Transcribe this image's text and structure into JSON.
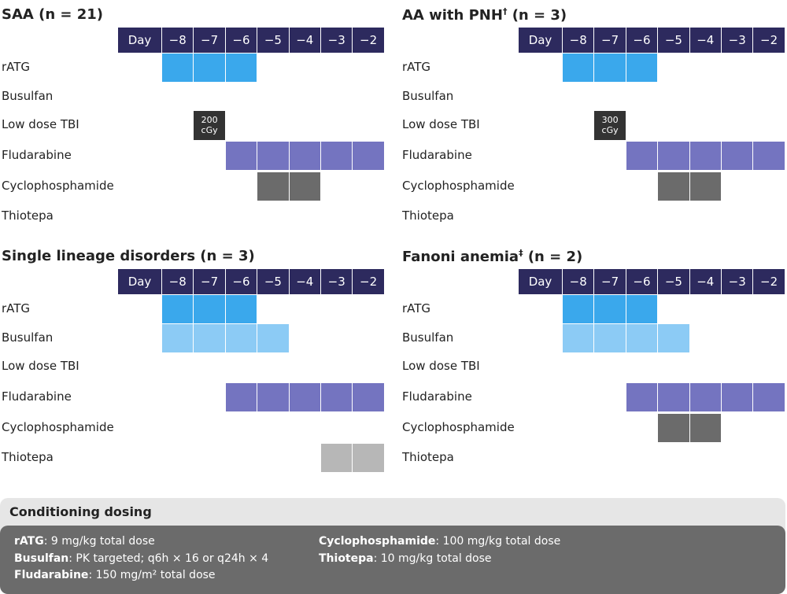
{
  "panels": [
    {
      "title": "SAA (n = 21)",
      "header": "Day",
      "days": [
        {
          "value": -8,
          "label": "−8"
        },
        {
          "value": -7,
          "label": "−7"
        },
        {
          "value": -6,
          "label": "−6"
        },
        {
          "value": -5,
          "label": "−5"
        },
        {
          "value": -4,
          "label": "−4"
        },
        {
          "value": -3,
          "label": "−3"
        },
        {
          "value": -2,
          "label": "−2"
        }
      ],
      "rows": [
        {
          "label": "rATG",
          "color": "#3aa8ec",
          "days": [
            -8,
            -7,
            -6
          ]
        },
        {
          "label": "Busulfan",
          "color": "#8ccbf5",
          "days": []
        },
        {
          "label": "Low dose TBI",
          "color": "#333333",
          "days": [
            -7
          ],
          "dose": "200 cGy"
        },
        {
          "label": "Fludarabine",
          "color": "#7474c0",
          "days": [
            -6,
            -5,
            -4,
            -3,
            -2
          ]
        },
        {
          "label": "Cyclophosphamide",
          "color": "#6b6b6b",
          "days": [
            -5,
            -4
          ]
        },
        {
          "label": "Thiotepa",
          "color": "#b7b7b7",
          "days": []
        }
      ]
    },
    {
      "title": "AA with PNH",
      "title_mark": "†",
      "title_suffix": " (n = 3)",
      "header": "Day",
      "days": [
        {
          "value": -8,
          "label": "−8"
        },
        {
          "value": -7,
          "label": "−7"
        },
        {
          "value": -6,
          "label": "−6"
        },
        {
          "value": -5,
          "label": "−5"
        },
        {
          "value": -4,
          "label": "−4"
        },
        {
          "value": -3,
          "label": "−3"
        },
        {
          "value": -2,
          "label": "−2"
        }
      ],
      "rows": [
        {
          "label": "rATG",
          "color": "#3aa8ec",
          "days": [
            -8,
            -7,
            -6
          ]
        },
        {
          "label": "Busulfan",
          "color": "#8ccbf5",
          "days": []
        },
        {
          "label": "Low dose TBI",
          "color": "#333333",
          "days": [
            -7
          ],
          "dose": "300 cGy"
        },
        {
          "label": "Fludarabine",
          "color": "#7474c0",
          "days": [
            -6,
            -5,
            -4,
            -3,
            -2
          ]
        },
        {
          "label": "Cyclophosphamide",
          "color": "#6b6b6b",
          "days": [
            -5,
            -4
          ]
        },
        {
          "label": "Thiotepa",
          "color": "#b7b7b7",
          "days": []
        }
      ]
    },
    {
      "title": "Single lineage disorders (n = 3)",
      "header": "Day",
      "days": [
        {
          "value": -8,
          "label": "−8"
        },
        {
          "value": -7,
          "label": "−7"
        },
        {
          "value": -6,
          "label": "−6"
        },
        {
          "value": -5,
          "label": "−5"
        },
        {
          "value": -4,
          "label": "−4"
        },
        {
          "value": -3,
          "label": "−3"
        },
        {
          "value": -2,
          "label": "−2"
        }
      ],
      "rows": [
        {
          "label": "rATG",
          "color": "#3aa8ec",
          "days": [
            -8,
            -7,
            -6
          ]
        },
        {
          "label": "Busulfan",
          "color": "#8ccbf5",
          "days": [
            -8,
            -7,
            -6,
            -5
          ]
        },
        {
          "label": "Low dose TBI",
          "color": "#333333",
          "days": []
        },
        {
          "label": "Fludarabine",
          "color": "#7474c0",
          "days": [
            -6,
            -5,
            -4,
            -3,
            -2
          ]
        },
        {
          "label": "Cyclophosphamide",
          "color": "#6b6b6b",
          "days": []
        },
        {
          "label": "Thiotepa",
          "color": "#b7b7b7",
          "days": [
            -3,
            -2
          ]
        }
      ]
    },
    {
      "title": "Fanoni anemia",
      "title_mark": "‡",
      "title_suffix": " (n = 2)",
      "header": "Day",
      "days": [
        {
          "value": -8,
          "label": "−8"
        },
        {
          "value": -7,
          "label": "−7"
        },
        {
          "value": -6,
          "label": "−6"
        },
        {
          "value": -5,
          "label": "−5"
        },
        {
          "value": -4,
          "label": "−4"
        },
        {
          "value": -3,
          "label": "−3"
        },
        {
          "value": -2,
          "label": "−2"
        }
      ],
      "rows": [
        {
          "label": "rATG",
          "color": "#3aa8ec",
          "days": [
            -8,
            -7,
            -6
          ]
        },
        {
          "label": "Busulfan",
          "color": "#8ccbf5",
          "days": [
            -8,
            -7,
            -6,
            -5
          ]
        },
        {
          "label": "Low dose TBI",
          "color": "#333333",
          "days": []
        },
        {
          "label": "Fludarabine",
          "color": "#7474c0",
          "days": [
            -6,
            -5,
            -4,
            -3,
            -2
          ]
        },
        {
          "label": "Cyclophosphamide",
          "color": "#6b6b6b",
          "days": [
            -5,
            -4
          ]
        },
        {
          "label": "Thiotepa",
          "color": "#b7b7b7",
          "days": []
        }
      ]
    }
  ],
  "dosing": {
    "title": "Conditioning dosing",
    "items": [
      {
        "drug": "rATG",
        "text": ": 9 mg/kg total dose"
      },
      {
        "drug": "Busulfan",
        "text": ": PK targeted; q6h × 16 or q24h × 4"
      },
      {
        "drug": "Fludarabine",
        "text": ": 150 mg/m² total dose"
      },
      {
        "drug": "Cyclophosphamide",
        "text": ": 100 mg/kg total dose"
      },
      {
        "drug": "Thiotepa",
        "text": ": 10 mg/kg total dose"
      }
    ]
  }
}
